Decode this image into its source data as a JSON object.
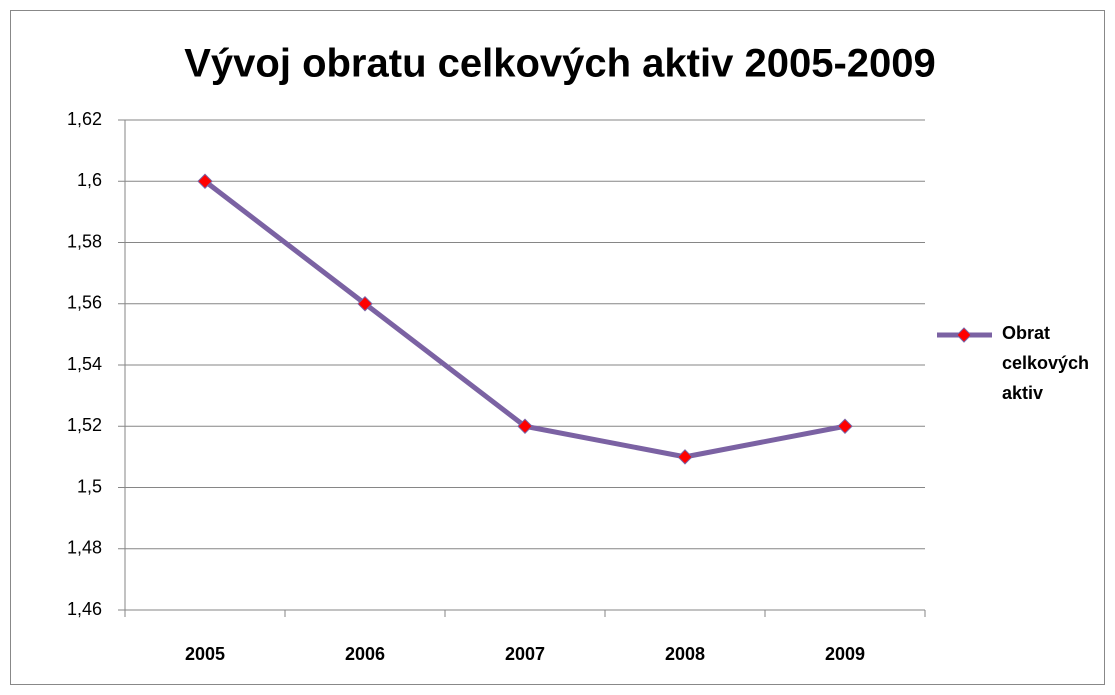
{
  "chart_data": {
    "type": "line",
    "title": "Vývoj obratu celkových aktiv 2005-2009",
    "categories": [
      "2005",
      "2006",
      "2007",
      "2008",
      "2009"
    ],
    "series": [
      {
        "name": "Obrat celkových aktiv",
        "color": "#7b62a3",
        "marker_color": "#ff0000",
        "values": [
          1.6,
          1.56,
          1.52,
          1.51,
          1.52
        ]
      }
    ],
    "ylim": [
      1.46,
      1.62
    ],
    "yticks": [
      {
        "value": 1.46,
        "label": "1,46"
      },
      {
        "value": 1.48,
        "label": "1,48"
      },
      {
        "value": 1.5,
        "label": "1,5"
      },
      {
        "value": 1.52,
        "label": "1,52"
      },
      {
        "value": 1.54,
        "label": "1,54"
      },
      {
        "value": 1.56,
        "label": "1,56"
      },
      {
        "value": 1.58,
        "label": "1,58"
      },
      {
        "value": 1.6,
        "label": "1,6"
      },
      {
        "value": 1.62,
        "label": "1,62"
      }
    ],
    "grid": true,
    "legend": "right"
  }
}
